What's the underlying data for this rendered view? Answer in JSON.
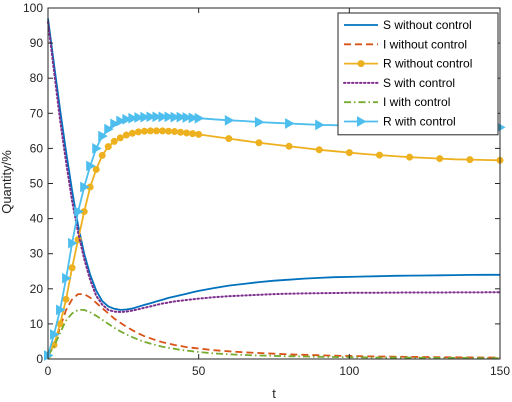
{
  "chart_data": {
    "type": "line",
    "xlabel": "t",
    "ylabel": "Quantity/%",
    "xlim": [
      0,
      150
    ],
    "ylim": [
      0,
      100
    ],
    "xticks": [
      0,
      50,
      100,
      150
    ],
    "yticks": [
      0,
      10,
      20,
      30,
      40,
      50,
      60,
      70,
      80,
      90,
      100
    ],
    "x": [
      0,
      2,
      4,
      6,
      8,
      10,
      12,
      14,
      16,
      18,
      20,
      22,
      24,
      26,
      28,
      30,
      32,
      34,
      36,
      38,
      40,
      42,
      44,
      46,
      48,
      50,
      55,
      60,
      65,
      70,
      75,
      80,
      85,
      90,
      95,
      100,
      105,
      110,
      115,
      120,
      125,
      130,
      135,
      140,
      145,
      150
    ],
    "legend_position": "top-right",
    "series": [
      {
        "name": "S without control",
        "color": "#0072BD",
        "style": "solid",
        "marker": "none",
        "values": [
          97,
          84,
          71,
          59,
          48,
          38,
          30,
          24,
          19.5,
          16.5,
          15,
          14.3,
          14,
          14.1,
          14.4,
          14.9,
          15.4,
          15.9,
          16.4,
          16.9,
          17.4,
          17.8,
          18.2,
          18.6,
          19,
          19.4,
          20.2,
          20.9,
          21.4,
          21.9,
          22.3,
          22.6,
          22.9,
          23.1,
          23.3,
          23.4,
          23.5,
          23.6,
          23.7,
          23.75,
          23.8,
          23.85,
          23.9,
          23.95,
          23.98,
          24
        ]
      },
      {
        "name": "I without control",
        "color": "#D95319",
        "style": "dashed",
        "marker": "none",
        "values": [
          1,
          4,
          9,
          14,
          17,
          18.5,
          18.5,
          17.5,
          16,
          14.5,
          13,
          11.5,
          10.3,
          9.2,
          8.2,
          7.3,
          6.5,
          5.9,
          5.3,
          4.8,
          4.4,
          4,
          3.7,
          3.4,
          3.2,
          3,
          2.5,
          2.2,
          1.9,
          1.7,
          1.5,
          1.3,
          1.2,
          1.05,
          0.95,
          0.85,
          0.78,
          0.72,
          0.66,
          0.6,
          0.56,
          0.52,
          0.49,
          0.46,
          0.43,
          0.4
        ]
      },
      {
        "name": "R without control",
        "color": "#EDB120",
        "style": "solid",
        "marker": "circle",
        "values": [
          1,
          4,
          10,
          17,
          26,
          34,
          42,
          49,
          54,
          58,
          60.5,
          62,
          63,
          63.8,
          64.3,
          64.7,
          64.9,
          65,
          65,
          65,
          64.9,
          64.8,
          64.6,
          64.4,
          64.2,
          64,
          63.4,
          62.8,
          62.2,
          61.6,
          61.1,
          60.6,
          60.1,
          59.6,
          59.2,
          58.8,
          58.4,
          58.1,
          57.8,
          57.5,
          57.3,
          57.1,
          56.9,
          56.8,
          56.7,
          56.6
        ]
      },
      {
        "name": "S with control",
        "color": "#7E2F8E",
        "style": "dotted",
        "marker": "none",
        "values": [
          96,
          82,
          68,
          56,
          45,
          36,
          28.5,
          22.5,
          18,
          15.5,
          14,
          13.5,
          13.4,
          13.5,
          13.8,
          14.2,
          14.6,
          15,
          15.4,
          15.8,
          16.1,
          16.4,
          16.6,
          16.8,
          17,
          17.2,
          17.6,
          17.9,
          18.1,
          18.3,
          18.5,
          18.6,
          18.7,
          18.75,
          18.8,
          18.85,
          18.87,
          18.9,
          18.92,
          18.94,
          18.95,
          18.96,
          18.97,
          18.98,
          18.99,
          19
        ]
      },
      {
        "name": "I with control",
        "color": "#77AC30",
        "style": "dashdot",
        "marker": "none",
        "values": [
          1,
          3.5,
          7.5,
          11,
          13,
          14,
          14,
          13.3,
          12.3,
          11.2,
          10,
          8.9,
          7.9,
          7,
          6.2,
          5.5,
          4.9,
          4.4,
          3.9,
          3.5,
          3.2,
          2.9,
          2.6,
          2.4,
          2.2,
          2,
          1.6,
          1.35,
          1.15,
          1,
          0.88,
          0.78,
          0.7,
          0.63,
          0.57,
          0.52,
          0.47,
          0.43,
          0.4,
          0.37,
          0.34,
          0.32,
          0.3,
          0.28,
          0.26,
          0.25
        ]
      },
      {
        "name": "R with control",
        "color": "#4DBEEE",
        "style": "solid",
        "marker": "triangle-right",
        "values": [
          1,
          7,
          14,
          23,
          33,
          42,
          49,
          55,
          60,
          63.5,
          65.5,
          67,
          67.8,
          68.3,
          68.6,
          68.8,
          68.9,
          69,
          69,
          69,
          69,
          68.9,
          68.9,
          68.8,
          68.7,
          68.6,
          68.3,
          68,
          67.8,
          67.5,
          67.3,
          67.1,
          66.9,
          66.7,
          66.6,
          66.5,
          66.4,
          66.3,
          66.2,
          66.15,
          66.1,
          66.05,
          66.02,
          66,
          66,
          66
        ]
      }
    ]
  }
}
